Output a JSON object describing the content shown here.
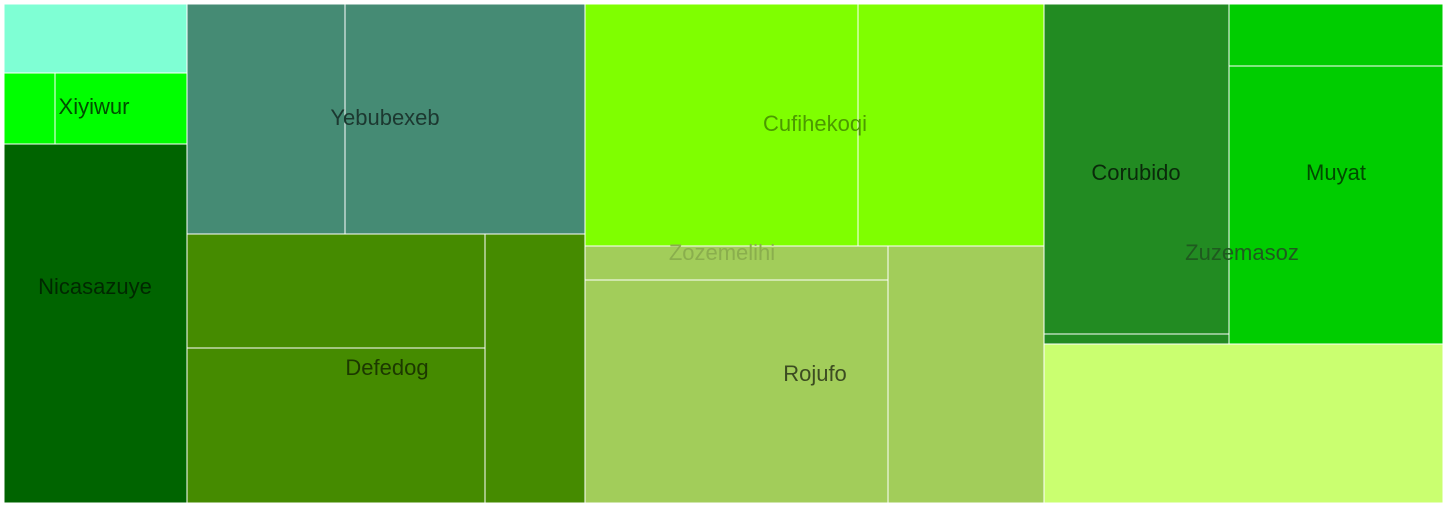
{
  "chart_data": {
    "type": "treemap",
    "groups": [
      {
        "name": "Nicasazuye",
        "color": "#006400",
        "label_color": "#002800",
        "children": [
          {
            "color": "#7fffd4",
            "label": ""
          },
          {
            "color": "#00ff00",
            "label": "Xiyiwur",
            "label_color": "#004d00"
          },
          {
            "color": "#00ff00",
            "label": ""
          },
          {
            "color": "#006400",
            "label": ""
          }
        ]
      },
      {
        "name": "Yebubexeb",
        "color": "#458b74",
        "label_color": "#1c3830",
        "children": [
          {
            "color": "#458b74"
          },
          {
            "color": "#458b74"
          }
        ]
      },
      {
        "name": "Defedog",
        "color": "#458b00",
        "label_color": "#1c3800",
        "children": [
          {
            "color": "#458b00"
          },
          {
            "color": "#458b00"
          },
          {
            "color": "#458b00"
          }
        ]
      },
      {
        "name": "Cufihekoqi",
        "color": "#7fff00",
        "label_color": "#4b9a00",
        "children": [
          {
            "color": "#7fff00"
          },
          {
            "color": "#7fff00"
          }
        ]
      },
      {
        "name": "Zozemelihi",
        "color": "#a2cd5a",
        "label_color": "#8aae4d",
        "children": [
          {
            "color": "#a2cd5a"
          }
        ]
      },
      {
        "name": "Rojufo",
        "color": "#a2cd5a",
        "label_color": "#3c4c21",
        "children": [
          {
            "color": "#a2cd5a"
          },
          {
            "color": "#a2cd5a"
          }
        ]
      },
      {
        "name": "Corubido",
        "color": "#228b22",
        "label_color": "#0a2a0a",
        "children": [
          {
            "color": "#228b22"
          }
        ]
      },
      {
        "name": "Muyat",
        "color": "#00cd00",
        "label_color": "#004a00",
        "children": [
          {
            "color": "#00cd00"
          },
          {
            "color": "#00cd00"
          }
        ]
      },
      {
        "name": "Zuzemasoz",
        "color": "#caff70",
        "label_color": "#1f5a1f",
        "children": [
          {
            "color": "#caff70"
          }
        ]
      }
    ]
  }
}
